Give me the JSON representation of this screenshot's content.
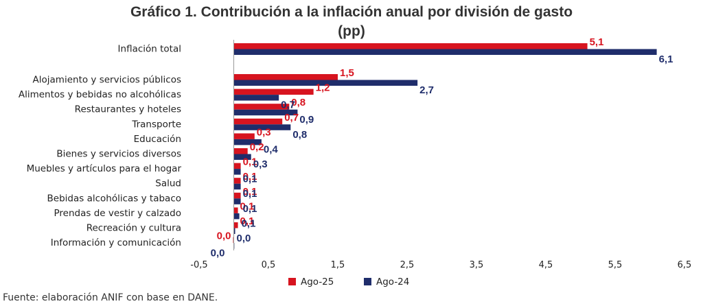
{
  "chart_data": {
    "type": "bar",
    "orientation": "horizontal",
    "title": "Gráfico 1. Contribución a la inflación anual por división de gasto",
    "subtitle": "(pp)",
    "categories": [
      "Inflación total",
      "Alojamiento y servicios públicos",
      "Alimentos y bebidas no alcohólicas",
      "Restaurantes y hoteles",
      "Transporte",
      "Educación",
      "Bienes y servicios diversos",
      "Muebles y artículos para el hogar",
      "Salud",
      "Bebidas alcohólicas y tabaco",
      "Prendas de vestir y calzado",
      "Recreación y cultura",
      "Información y comunicación"
    ],
    "series": [
      {
        "name": "Ago-25",
        "color": "#d7141f",
        "values": [
          5.1,
          1.5,
          1.15,
          0.8,
          0.7,
          0.3,
          0.2,
          0.1,
          0.1,
          0.1,
          0.06,
          0.06,
          -0.01
        ],
        "labels": [
          "5,1",
          "1,5",
          "1,2",
          "0,8",
          "0,7",
          "0,3",
          "0,2",
          "0,1",
          "0,1",
          "0,1",
          "0,1",
          "0,1",
          "0,0"
        ]
      },
      {
        "name": "Ago-24",
        "color": "#1f2d6b",
        "values": [
          6.1,
          2.65,
          0.65,
          0.92,
          0.82,
          0.4,
          0.25,
          0.1,
          0.1,
          0.1,
          0.08,
          0.02,
          0.0
        ],
        "labels": [
          "6,1",
          "2,7",
          "0,7",
          "0,9",
          "0,8",
          "0,4",
          "0,3",
          "0,1",
          "0,1",
          "0,1",
          "0,1",
          "0,0",
          "0,0"
        ]
      }
    ],
    "xlim": [
      -0.5,
      6.5
    ],
    "xticks": [
      "-0,5",
      "0,5",
      "1,5",
      "2,5",
      "3,5",
      "4,5",
      "5,5",
      "6,5"
    ],
    "xtick_values": [
      -0.5,
      0.5,
      1.5,
      2.5,
      3.5,
      4.5,
      5.5,
      6.5
    ],
    "legend_position": "bottom-center",
    "grid": false
  },
  "source": "Fuente: elaboración ANIF con base en DANE."
}
